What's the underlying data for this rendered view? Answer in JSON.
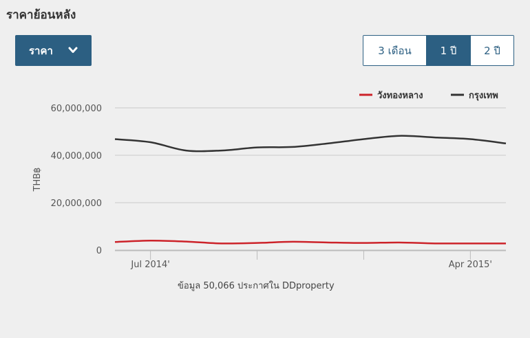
{
  "header": {
    "title": "ราคาย้อนหลัง"
  },
  "dropdown": {
    "label": "ราคา",
    "icon": "chevron-down-icon"
  },
  "range_buttons": [
    {
      "label": "3 เดือน",
      "active": false
    },
    {
      "label": "1 ปี",
      "active": true
    },
    {
      "label": "2 ปี",
      "active": false
    }
  ],
  "footer": {
    "source": "ข้อมูล 50,066 ประกาศใน DDproperty"
  },
  "colors": {
    "accent": "#2c5f82",
    "series_red": "#cc2229",
    "series_dark": "#333333",
    "grid": "#c8c8c8"
  },
  "chart_data": {
    "type": "line",
    "title": "",
    "xlabel": "",
    "ylabel": "THB฿",
    "ylim": [
      0,
      60000000
    ],
    "yticks": [
      0,
      20000000,
      40000000,
      60000000
    ],
    "ytick_labels": [
      "0",
      "20,000,000",
      "40,000,000",
      "60,000,000"
    ],
    "x_range": [
      "2014-06",
      "2015-05"
    ],
    "x_minor_ticks": [
      "2014-07",
      "2014-10",
      "2015-01",
      "2015-04"
    ],
    "x_labels": [
      {
        "x": "2014-07",
        "label": "Jul 2014'"
      },
      {
        "x": "2015-04",
        "label": "Apr 2015'"
      }
    ],
    "grid": true,
    "legend_position": "top-right",
    "x": [
      "2014-06",
      "2014-07",
      "2014-08",
      "2014-09",
      "2014-10",
      "2014-11",
      "2014-12",
      "2015-01",
      "2015-02",
      "2015-03",
      "2015-04",
      "2015-05"
    ],
    "series": [
      {
        "name": "วังทองหลาง",
        "color": "#cc2229",
        "values": [
          3400000,
          4000000,
          3600000,
          2800000,
          3000000,
          3500000,
          3200000,
          3000000,
          3200000,
          2800000,
          2800000,
          2800000
        ]
      },
      {
        "name": "กรุงเทพ",
        "color": "#333333",
        "values": [
          46800000,
          45500000,
          42000000,
          42000000,
          43300000,
          43500000,
          45000000,
          46800000,
          48200000,
          47500000,
          46800000,
          45000000
        ]
      }
    ]
  }
}
